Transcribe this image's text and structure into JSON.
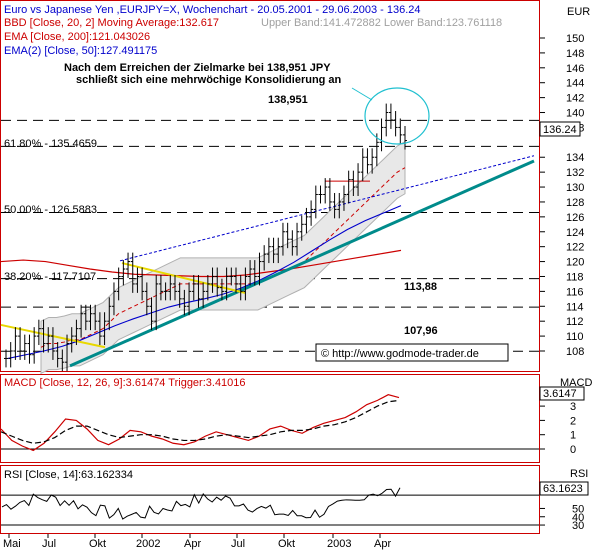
{
  "header": {
    "title": "Euro vs Japanese Yen ,EURJPY=X, Wochenchart - 20.05.2001 - 29.06.2003 - 136.24",
    "currency": "EUR"
  },
  "legend": {
    "bbd": "BBD [Close, 20, 2] Moving Average:132.617",
    "bbd_bands": "Upper Band:141.472882 Lower Band:123.761118",
    "ema200": "EMA [Close, 200]:121.043026",
    "ema2": "EMA(2) [Close, 50]:127.491175"
  },
  "annotations": {
    "note_line1": "Nach dem Erreichen der Zielmarke bei 138,951 JPY",
    "note_line2": "schließt sich eine mehrwöchige Konsolidierung an",
    "level_138": "138,951",
    "level_113": "113,88",
    "level_107": "107,96",
    "copyright": "© http://www.godmode-trader.de",
    "fib_618": "61.80% - 135.4659",
    "fib_500": "50.00% - 126.5883",
    "fib_382": "38.20% - 117.7107"
  },
  "price_axis": {
    "ticks": [
      "150",
      "148",
      "146",
      "144",
      "142",
      "140",
      "138",
      "134",
      "132",
      "130",
      "128",
      "126",
      "124",
      "122",
      "120",
      "118",
      "116",
      "114",
      "112",
      "110",
      "108"
    ],
    "last_price": "136.24"
  },
  "macd": {
    "label": "MACD [Close, 12, 26, 9]:3.61474 Trigger:3.41016",
    "axis_title": "MACD",
    "value_box": "3.6147",
    "ticks": [
      "3",
      "2",
      "1",
      "0"
    ]
  },
  "rsi": {
    "label": "RSI [Close, 14]:63.162334",
    "axis_title": "RSI",
    "value_box": "63.1623",
    "ticks": [
      "50",
      "40",
      "30"
    ]
  },
  "time_axis": {
    "labels": [
      "Mai",
      "Jul",
      "Okt",
      "2002",
      "Apr",
      "Jul",
      "Okt",
      "2003",
      "Apr"
    ]
  },
  "colors": {
    "background": "#ffffff",
    "frame": "#cc0000",
    "candle_up": "#000000",
    "bollinger_mid": "#cc0000",
    "bollinger_band": "#b0b0b0",
    "ema200": "#cc0000",
    "ema50": "#0000cc",
    "trend_green": "#008b8b",
    "trend_blue_dotted": "#0000cc",
    "yellow": "#e8d800",
    "circle": "#20c0d0",
    "legend_blue": "#0000cc",
    "legend_red": "#cc0000"
  },
  "chart_data": {
    "type": "line",
    "title": "Euro vs Japanese Yen ,EURJPY=X, Wochenchart - 20.05.2001 - 29.06.2003 - 136.24",
    "ylim": [
      106,
      152
    ],
    "close": [
      107,
      108,
      110,
      108,
      109,
      107.5,
      110,
      111,
      109,
      110,
      108,
      107,
      106.5,
      109,
      110,
      111,
      113,
      112,
      113,
      112,
      110,
      112,
      114,
      116,
      118,
      119,
      120,
      117,
      118,
      116,
      114,
      112,
      117,
      116,
      116,
      117,
      116,
      115,
      114,
      116,
      117,
      115,
      116,
      117,
      118,
      116.5,
      116,
      118,
      118,
      117,
      116,
      118,
      119,
      118,
      120,
      121,
      122,
      121,
      122,
      124,
      123,
      122,
      124,
      125,
      126,
      127,
      129,
      129,
      130,
      128,
      127,
      128,
      129,
      131,
      130,
      132,
      134,
      133,
      134,
      136,
      138,
      140,
      139,
      138,
      137,
      136.24
    ],
    "series": [
      {
        "name": "BBD Moving Average",
        "values": [
          108.5,
          109,
          109,
          109.2,
          109.5,
          109.5,
          110,
          110.5,
          111,
          112,
          113,
          113.5,
          114,
          114.5,
          115,
          115.5,
          116,
          116.5,
          117,
          117,
          117,
          117,
          117,
          117,
          117,
          117,
          117,
          117,
          117,
          117.5,
          118,
          118.5,
          119,
          119.5,
          120,
          121,
          122,
          123,
          124,
          125,
          126,
          127,
          128,
          129,
          130,
          131,
          132,
          132.6
        ]
      },
      {
        "name": "EMA 200",
        "values": [
          120,
          120.2,
          120,
          119.5,
          119,
          118.6,
          118.3,
          118.2,
          118.1,
          118,
          118,
          118.2,
          118.6,
          119,
          119.5,
          120,
          120.5,
          121,
          121.5
        ]
      },
      {
        "name": "EMA(2) 50",
        "values": [
          107,
          107.5,
          108,
          108.6,
          109.4,
          110.4,
          111.4,
          112.3,
          113.1,
          113.9,
          114.5,
          115,
          115.6,
          116.4,
          117.4,
          118.6,
          119.9,
          121.4,
          122.9,
          124.3,
          125.5,
          126.5,
          127.5
        ]
      }
    ],
    "macd": {
      "macd": 3.61474,
      "trigger": 3.41016,
      "ylim": [
        -0.5,
        4
      ]
    },
    "rsi": {
      "value": 63.162334,
      "ylim": [
        25,
        85
      ]
    }
  }
}
